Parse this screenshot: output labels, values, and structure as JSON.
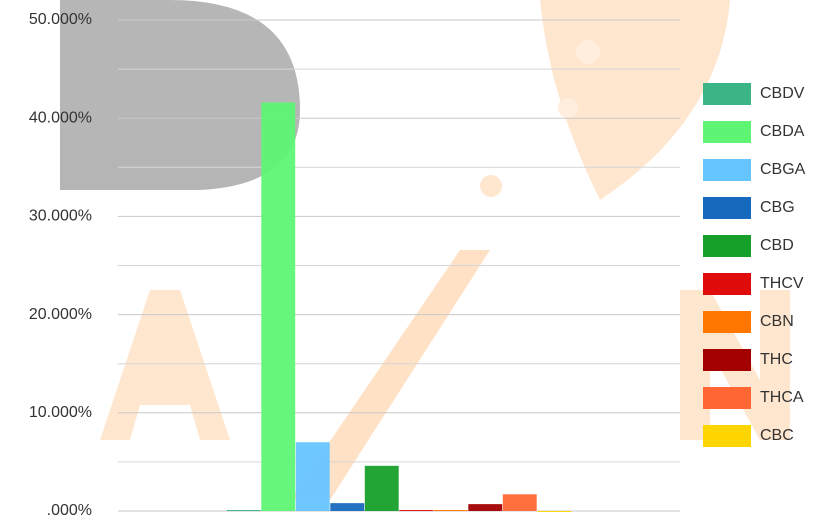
{
  "chart_data": {
    "type": "bar",
    "categories": [
      null
    ],
    "series": [
      {
        "name": "CBDV",
        "color": "#3bb585",
        "values": [
          0.1
        ]
      },
      {
        "name": "CBDA",
        "color": "#5ef575",
        "values": [
          41.6
        ]
      },
      {
        "name": "CBGA",
        "color": "#66c4ff",
        "values": [
          7.0
        ]
      },
      {
        "name": "CBG",
        "color": "#1769bd",
        "values": [
          0.8
        ]
      },
      {
        "name": "CBD",
        "color": "#16a02a",
        "values": [
          4.6
        ]
      },
      {
        "name": "THCV",
        "color": "#e00b0b",
        "values": [
          0.1
        ]
      },
      {
        "name": "CBN",
        "color": "#ff7700",
        "values": [
          0.1
        ]
      },
      {
        "name": "THC",
        "color": "#a30000",
        "values": [
          0.7
        ]
      },
      {
        "name": "THCA",
        "color": "#ff6633",
        "values": [
          1.7
        ]
      },
      {
        "name": "CBC",
        "color": "#ffd500",
        "values": [
          0
        ]
      }
    ],
    "ylim": [
      0,
      50
    ],
    "yticks": [
      {
        "value": 0,
        "label": ".000%"
      },
      {
        "value": 10,
        "label": "10.000%"
      },
      {
        "value": 20,
        "label": "20.000%"
      },
      {
        "value": 30,
        "label": "30.000%"
      },
      {
        "value": 40,
        "label": "40.000%"
      },
      {
        "value": 50,
        "label": "50.000%"
      }
    ],
    "minor_yticks": [
      5,
      15,
      25,
      35,
      45
    ],
    "grid": true,
    "legend": "right"
  }
}
